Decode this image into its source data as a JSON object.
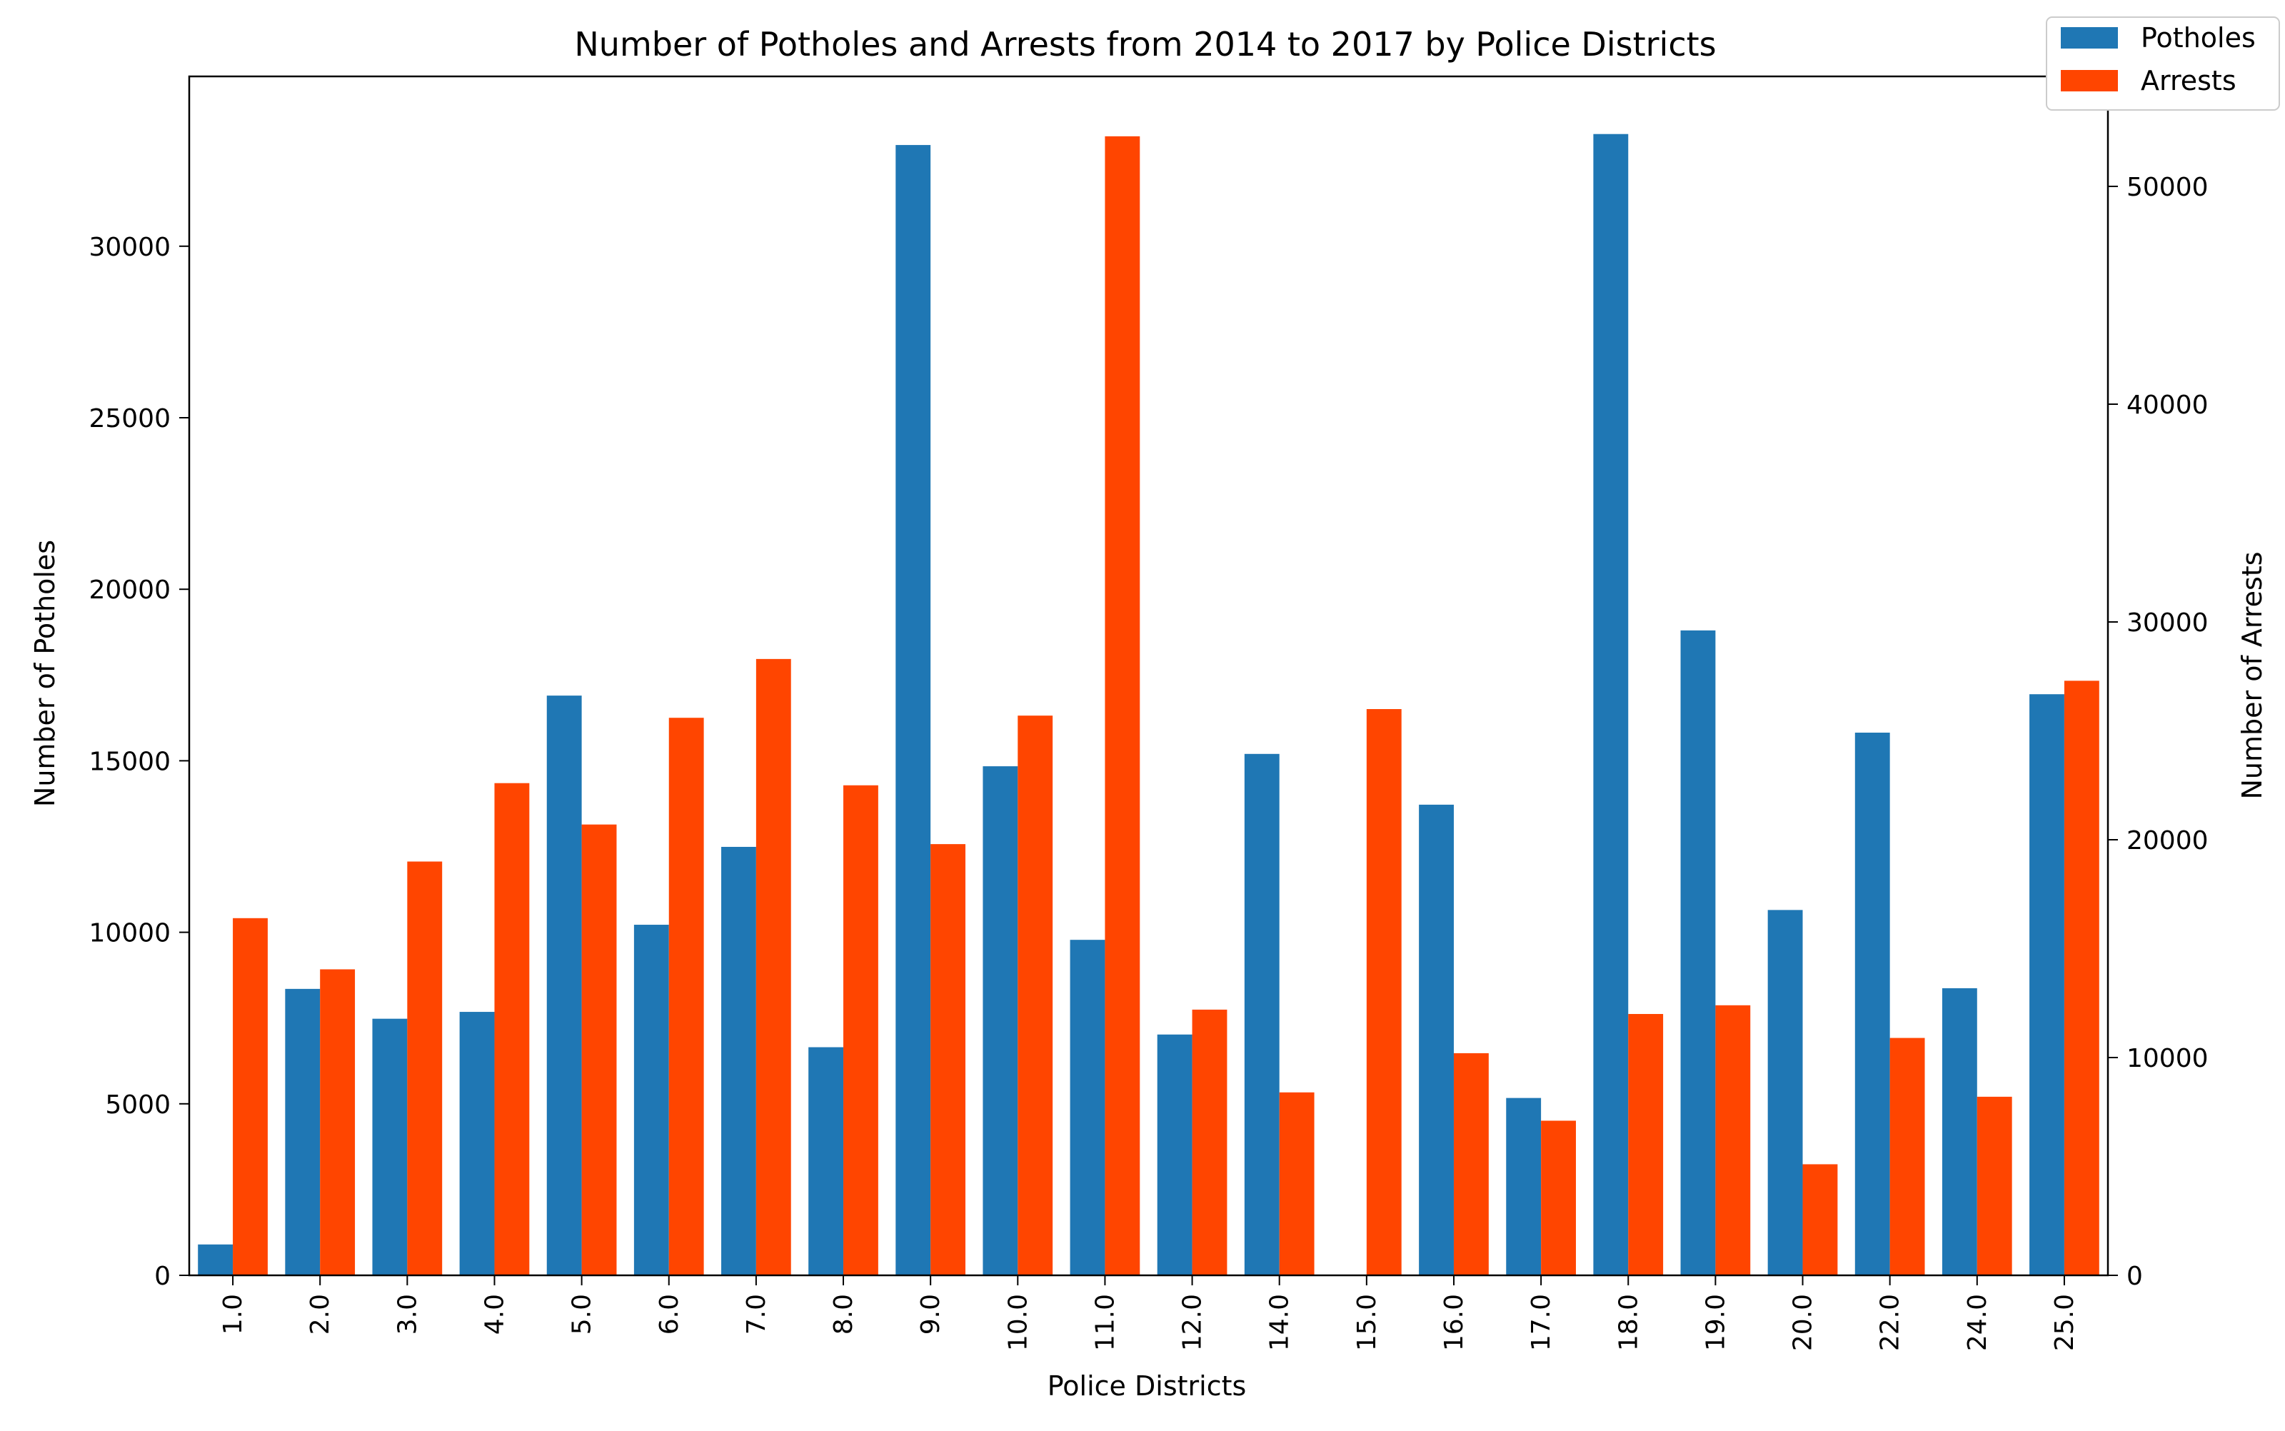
{
  "chart_data": {
    "type": "bar",
    "title": "Number of Potholes and Arrests from 2014 to 2017 by Police Districts",
    "xlabel": "Police Districts",
    "ylabel": "Number of Potholes",
    "ylabel_right": "Number of Arrests",
    "categories": [
      "1.0",
      "2.0",
      "3.0",
      "4.0",
      "5.0",
      "6.0",
      "7.0",
      "8.0",
      "9.0",
      "10.0",
      "11.0",
      "12.0",
      "14.0",
      "15.0",
      "16.0",
      "17.0",
      "18.0",
      "19.0",
      "20.0",
      "22.0",
      "24.0",
      "25.0"
    ],
    "series": [
      {
        "name": "Potholes",
        "axis": "left",
        "color": "#1f77b4",
        "values": [
          900,
          8350,
          7480,
          7680,
          16900,
          10220,
          12490,
          6650,
          32950,
          14840,
          9780,
          7020,
          15200,
          0,
          13720,
          5170,
          33270,
          18800,
          10650,
          15820,
          8370,
          16940
        ]
      },
      {
        "name": "Arrests",
        "axis": "right",
        "color": "#ff4500",
        "values": [
          16400,
          14050,
          19000,
          22600,
          20700,
          25600,
          28300,
          22500,
          19800,
          25700,
          52300,
          12200,
          8400,
          26000,
          10200,
          7100,
          12000,
          12400,
          5100,
          10900,
          8200,
          27300
        ]
      }
    ],
    "ylim": [
      0,
      34950
    ],
    "ylim_right": [
      0,
      55050
    ],
    "yticks": [
      0,
      5000,
      10000,
      15000,
      20000,
      25000,
      30000
    ],
    "yticks_right": [
      0,
      10000,
      20000,
      30000,
      40000,
      50000
    ],
    "grid": false,
    "legend_position": "top-right"
  }
}
